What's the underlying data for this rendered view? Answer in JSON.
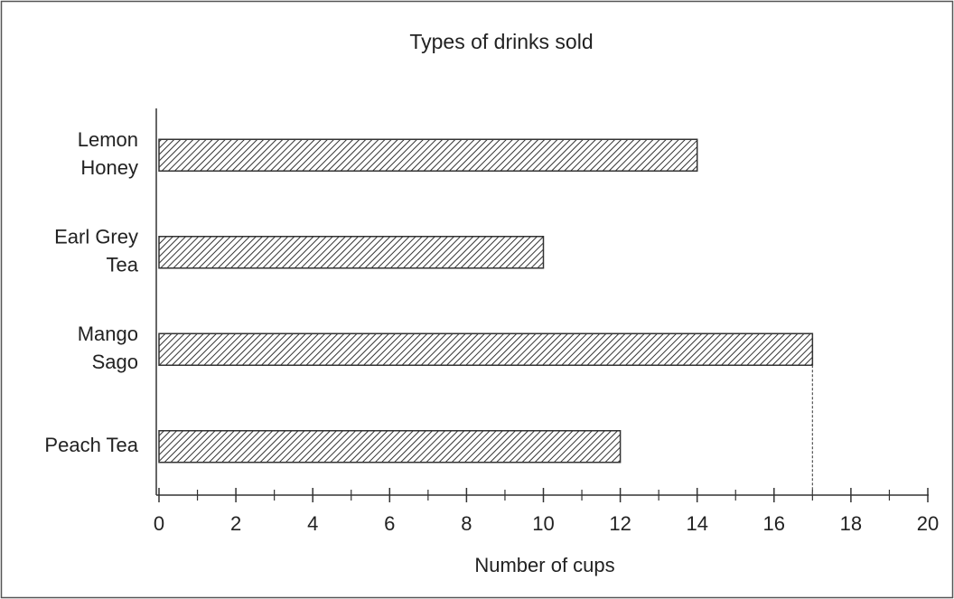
{
  "chart_data": {
    "type": "bar",
    "orientation": "horizontal",
    "title": "Types of drinks sold",
    "xlabel": "Number of cups",
    "categories": [
      [
        "Lemon",
        "Honey"
      ],
      [
        "Earl Grey",
        "Tea"
      ],
      [
        "Mango",
        "Sago"
      ],
      [
        "Peach Tea"
      ]
    ],
    "values": [
      14,
      10,
      17,
      12
    ],
    "color": "#333333",
    "xlim": [
      0,
      20
    ],
    "xticks": [
      0,
      2,
      4,
      6,
      8,
      10,
      12,
      14,
      16,
      18,
      20
    ],
    "grid": false
  }
}
